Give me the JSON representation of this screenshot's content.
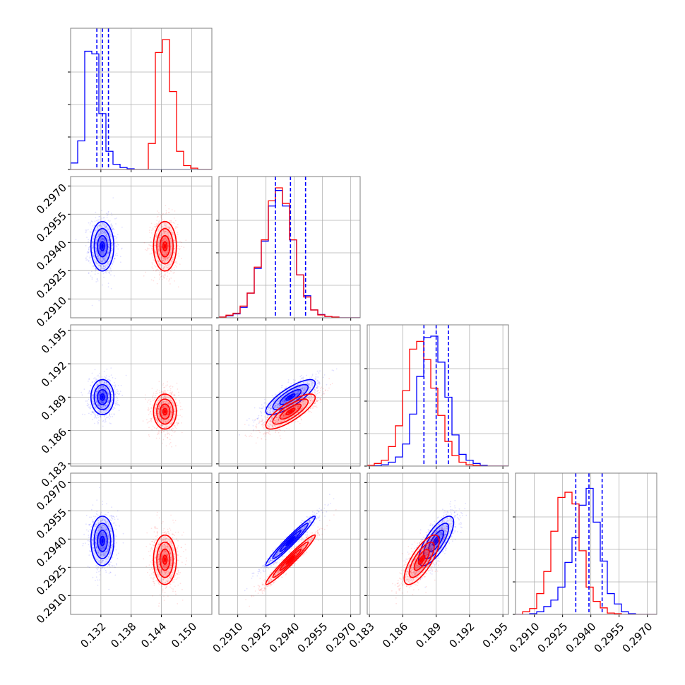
{
  "chart_data": {
    "type": "corner",
    "colors": {
      "series_a": "#0000ff",
      "series_b": "#ff0000",
      "frame": "#7f7f7f",
      "grid": "#b0b0b0"
    },
    "params": [
      {
        "range": [
          0.126,
          0.154
        ],
        "ticks": [
          "0.132",
          "0.138",
          "0.144",
          "0.150"
        ],
        "tick_values": [
          0.132,
          0.138,
          0.144,
          0.15
        ]
      },
      {
        "range": [
          0.29,
          0.2975
        ],
        "ticks": [
          "0.2910",
          "0.2925",
          "0.2940",
          "0.2955",
          "0.2970"
        ],
        "tick_values": [
          0.291,
          0.2925,
          0.294,
          0.2955,
          0.297
        ]
      },
      {
        "range": [
          0.1828,
          0.1955
        ],
        "ticks": [
          "0.183",
          "0.186",
          "0.189",
          "0.192",
          "0.195"
        ],
        "tick_values": [
          0.183,
          0.186,
          0.189,
          0.192,
          0.195
        ]
      },
      {
        "range": [
          0.29,
          0.2975
        ],
        "ticks": [
          "0.2910",
          "0.2925",
          "0.2940",
          "0.2955",
          "0.2970"
        ],
        "tick_values": [
          0.291,
          0.2925,
          0.294,
          0.2955,
          0.297
        ]
      }
    ],
    "series": [
      {
        "color": "blue",
        "mean": [
          0.1323,
          0.2938,
          0.189,
          0.2939
        ],
        "sd": [
          0.0013,
          0.00075,
          0.0009,
          0.00075
        ],
        "quantile_lines": [
          [
            0.1312,
            0.1323,
            0.1335
          ],
          [
            0.293,
            0.2938,
            0.2946
          ],
          [
            0.1879,
            0.189,
            0.1901
          ],
          [
            0.2932,
            0.2939,
            0.2946
          ]
        ],
        "correlations": {
          "1-2": 0.8,
          "1-3": 0.97,
          "2-3": 0.75
        }
      },
      {
        "color": "red",
        "mean": [
          0.1447,
          0.2938,
          0.1877,
          0.2929
        ],
        "sd": [
          0.0013,
          0.00075,
          0.0009,
          0.00075
        ],
        "quantile_lines": [],
        "correlations": {
          "1-2": 0.8,
          "1-3": 0.97,
          "2-3": 0.75
        }
      }
    ],
    "histograms": {
      "0": {
        "blue": [
          0.05,
          0.22,
          0.91,
          0.89,
          0.43,
          0.14,
          0.04,
          0.015,
          0.005,
          0,
          0,
          0,
          0,
          0,
          0,
          0,
          0,
          0,
          0,
          0
        ],
        "red": [
          0,
          0,
          0,
          0,
          0,
          0,
          0,
          0,
          0,
          0,
          0,
          0.2,
          0.9,
          1.0,
          0.6,
          0.14,
          0.03,
          0.01,
          0,
          0
        ]
      },
      "1": {
        "blue": [
          0.005,
          0.015,
          0.03,
          0.08,
          0.19,
          0.38,
          0.59,
          0.86,
          0.98,
          0.86,
          0.6,
          0.33,
          0.17,
          0.06,
          0.025,
          0.01,
          0.005,
          0,
          0,
          0
        ],
        "red": [
          0.005,
          0.02,
          0.035,
          0.09,
          0.19,
          0.39,
          0.6,
          0.9,
          1.0,
          0.88,
          0.6,
          0.33,
          0.16,
          0.06,
          0.022,
          0.01,
          0.005,
          0,
          0,
          0
        ]
      },
      "2": {
        "blue": [
          0,
          0.003,
          0.01,
          0.03,
          0.07,
          0.17,
          0.4,
          0.69,
          0.99,
          1.0,
          0.8,
          0.53,
          0.24,
          0.09,
          0.045,
          0.02,
          0.005,
          0,
          0,
          0
        ],
        "red": [
          0.005,
          0.02,
          0.045,
          0.15,
          0.31,
          0.58,
          0.9,
          0.96,
          0.82,
          0.6,
          0.39,
          0.19,
          0.08,
          0.03,
          0.01,
          0.005,
          0,
          0,
          0,
          0
        ]
      },
      "3": {
        "blue": [
          0,
          0,
          0.005,
          0.02,
          0.06,
          0.11,
          0.21,
          0.4,
          0.59,
          0.84,
          0.97,
          0.71,
          0.41,
          0.16,
          0.08,
          0.02,
          0.005,
          0,
          0,
          0
        ],
        "red": [
          0,
          0.02,
          0.045,
          0.16,
          0.33,
          0.64,
          0.9,
          0.94,
          0.85,
          0.49,
          0.21,
          0.1,
          0.05,
          0.01,
          0.005,
          0,
          0,
          0,
          0,
          0
        ]
      }
    }
  }
}
